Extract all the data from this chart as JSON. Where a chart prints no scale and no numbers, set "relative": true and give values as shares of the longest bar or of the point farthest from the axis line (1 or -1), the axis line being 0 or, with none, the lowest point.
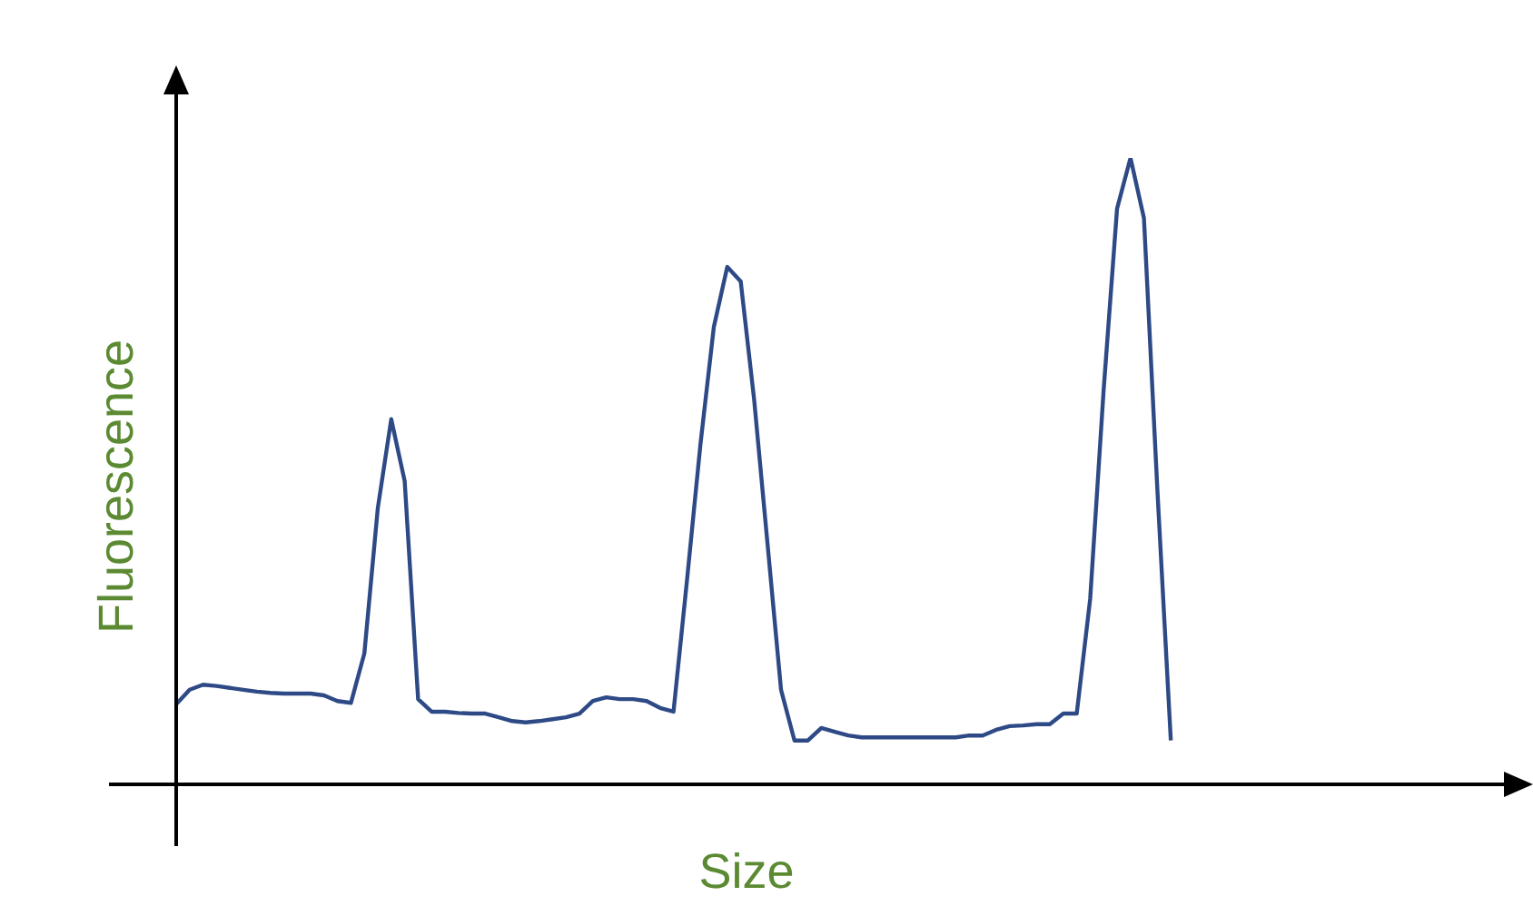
{
  "chart_data": {
    "type": "line",
    "xlabel": "Size",
    "ylabel": "Fluorescence",
    "relative": true,
    "marker": "none",
    "categories": [
      null,
      null,
      null,
      null,
      null,
      null,
      null,
      null,
      null,
      null,
      null,
      null,
      null,
      null,
      null,
      null,
      null,
      null,
      null,
      null,
      null,
      null,
      null,
      null,
      null,
      null,
      null,
      null,
      null,
      null,
      null,
      null,
      null,
      null,
      null,
      null,
      null,
      null,
      null,
      null,
      null,
      null,
      null,
      null,
      null,
      null,
      null,
      null,
      null,
      null,
      null,
      null,
      null,
      null,
      null,
      null,
      null,
      null,
      null,
      null,
      null,
      null,
      null,
      null,
      null,
      null,
      null,
      null,
      null,
      null,
      null,
      null,
      null,
      null,
      null,
      null,
      null,
      null,
      null,
      null,
      null,
      null,
      null,
      null,
      null,
      null,
      null,
      null,
      null,
      null,
      null,
      null,
      null,
      null,
      null,
      null,
      null,
      null,
      null,
      null,
      null
    ],
    "series": [
      {
        "color": "#2e4a86",
        "values": [
          0.128,
          0.151,
          0.159,
          0.157,
          0.154,
          0.151,
          0.148,
          0.146,
          0.145,
          0.145,
          0.145,
          0.142,
          0.133,
          0.13,
          0.209,
          0.441,
          0.583,
          0.484,
          0.136,
          0.116,
          0.116,
          0.114,
          0.113,
          0.113,
          0.107,
          0.101,
          0.099,
          0.101,
          0.104,
          0.107,
          0.113,
          0.133,
          0.139,
          0.136,
          0.136,
          0.133,
          0.122,
          0.116,
          0.325,
          0.542,
          0.73,
          0.826,
          0.803,
          0.614,
          0.383,
          0.151,
          0.07,
          0.07,
          0.09,
          0.084,
          0.078,
          0.075,
          0.075,
          0.075,
          0.075,
          0.075,
          0.075,
          0.075,
          0.075,
          0.078,
          0.078,
          0.087,
          0.093,
          0.094,
          0.096,
          0.096,
          0.113,
          0.113,
          0.296,
          0.629,
          0.919,
          1.0,
          0.904,
          0.47,
          0.07,
          null,
          null,
          null,
          null,
          null,
          null,
          null,
          null,
          null,
          null,
          null,
          null,
          null,
          null,
          null,
          null,
          null,
          null,
          null,
          null,
          null,
          null,
          null,
          null,
          null,
          null
        ]
      }
    ]
  }
}
